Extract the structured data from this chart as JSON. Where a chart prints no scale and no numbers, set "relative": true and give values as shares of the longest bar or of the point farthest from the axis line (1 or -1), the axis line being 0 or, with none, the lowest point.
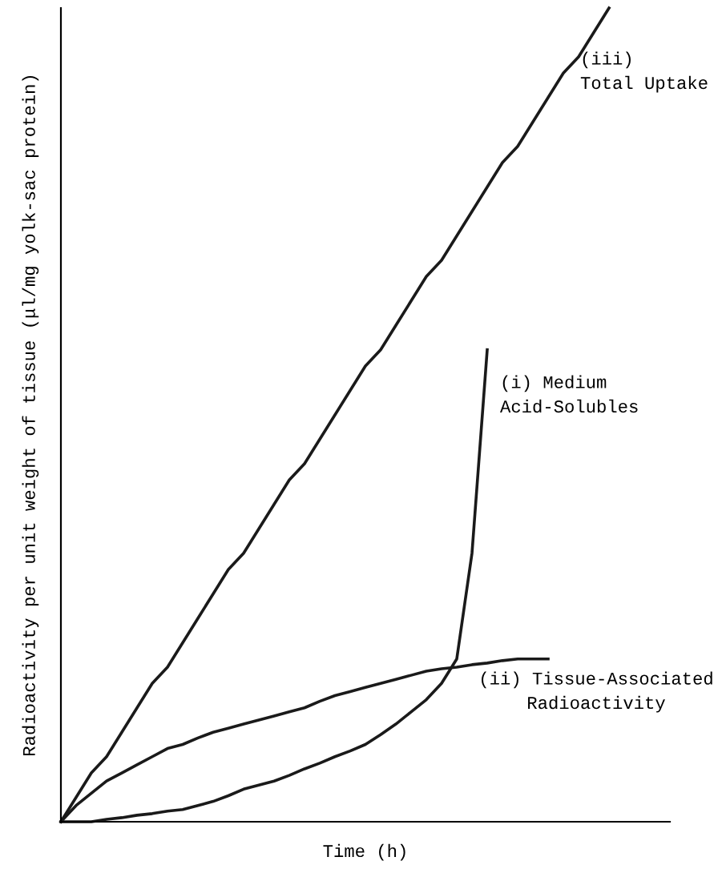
{
  "chart_data": {
    "type": "line",
    "relative": true,
    "xlabel": "Time (h)",
    "ylabel": "Radioactivity per unit weight of tissue (μl/mg yolk-sac protein)",
    "categories": [
      null,
      null,
      null,
      null,
      null,
      null,
      null,
      null,
      null,
      null,
      null,
      null,
      null,
      null,
      null,
      null,
      null,
      null,
      null,
      null,
      null,
      null,
      null,
      null,
      null,
      null,
      null,
      null,
      null,
      null,
      null,
      null,
      null,
      null,
      null,
      null,
      null,
      null,
      null,
      null,
      null
    ],
    "series": [
      {
        "color": "#1a1a1a",
        "values": [
          0,
          0.03,
          0.06,
          0.08,
          0.11,
          0.14,
          0.17,
          0.19,
          0.22,
          0.25,
          0.28,
          0.31,
          0.33,
          0.36,
          0.39,
          0.42,
          0.44,
          0.47,
          0.5,
          0.53,
          0.56,
          0.58,
          0.61,
          0.64,
          0.67,
          0.69,
          0.72,
          0.75,
          0.78,
          0.81,
          0.83,
          0.86,
          0.89,
          0.92,
          0.94,
          0.97,
          1.0,
          null,
          null,
          null,
          null
        ]
      },
      {
        "color": "#1a1a1a",
        "values": [
          0,
          0,
          0,
          0.003,
          0.005,
          0.008,
          0.01,
          0.013,
          0.015,
          0.02,
          0.025,
          0.032,
          0.04,
          0.045,
          0.05,
          0.057,
          0.065,
          0.072,
          0.08,
          0.087,
          0.095,
          0.107,
          0.12,
          0.135,
          0.15,
          0.17,
          0.2,
          0.33,
          0.58,
          null,
          null,
          null,
          null,
          null,
          null,
          null,
          null,
          null,
          null,
          null,
          null
        ]
      },
      {
        "color": "#1a1a1a",
        "values": [
          0,
          0.02,
          0.035,
          0.05,
          0.06,
          0.07,
          0.08,
          0.09,
          0.095,
          0.103,
          0.11,
          0.115,
          0.12,
          0.125,
          0.13,
          0.135,
          0.14,
          0.148,
          0.155,
          0.16,
          0.165,
          0.17,
          0.175,
          0.18,
          0.185,
          0.188,
          0.19,
          0.193,
          0.195,
          0.198,
          0.2,
          0.2,
          0.2,
          null,
          null,
          null,
          null,
          null,
          null,
          null,
          null
        ]
      }
    ],
    "annotations": [
      "(iii)\nTotal Uptake",
      "(i) Medium\nAcid-Solubles",
      "(ii) Tissue-Associated\nRadioactivity"
    ],
    "legend": false,
    "marker": "none",
    "line_style": "solid"
  }
}
